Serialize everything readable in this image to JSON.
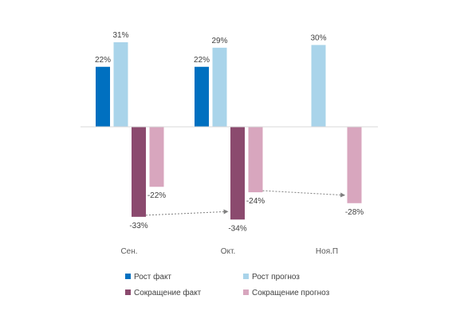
{
  "chart_data": {
    "type": "bar",
    "categories": [
      "Сен.",
      "Окт.",
      "Ноя.П"
    ],
    "series": [
      {
        "name": "Рост факт",
        "color": "#0070c0",
        "values": [
          22,
          22,
          null
        ]
      },
      {
        "name": "Рост прогноз",
        "color": "#a9d4ea",
        "values": [
          31,
          29,
          30
        ]
      },
      {
        "name": "Сокращение факт",
        "color": "#8b4a6e",
        "values": [
          -33,
          -34,
          null
        ]
      },
      {
        "name": "Сокращение прогноз",
        "color": "#d8a6be",
        "values": [
          -22,
          -24,
          -28
        ]
      }
    ],
    "data_labels": [
      [
        "22%",
        "22%",
        ""
      ],
      [
        "31%",
        "29%",
        "30%"
      ],
      [
        "-33%",
        "-34%",
        ""
      ],
      [
        "-22%",
        "-24%",
        "-28%"
      ]
    ],
    "title": "",
    "xlabel": "",
    "ylabel": "",
    "grid": false,
    "legend_position": "bottom",
    "annotations": [
      {
        "type": "arrow",
        "from": {
          "category": "Сен.",
          "series": "Сокращение факт"
        },
        "to": {
          "category": "Окт.",
          "series": "Сокращение факт"
        }
      },
      {
        "type": "arrow",
        "from": {
          "category": "Окт.",
          "series": "Сокращение прогноз"
        },
        "to": {
          "category": "Ноя.П",
          "series": "Сокращение прогноз"
        }
      }
    ]
  }
}
